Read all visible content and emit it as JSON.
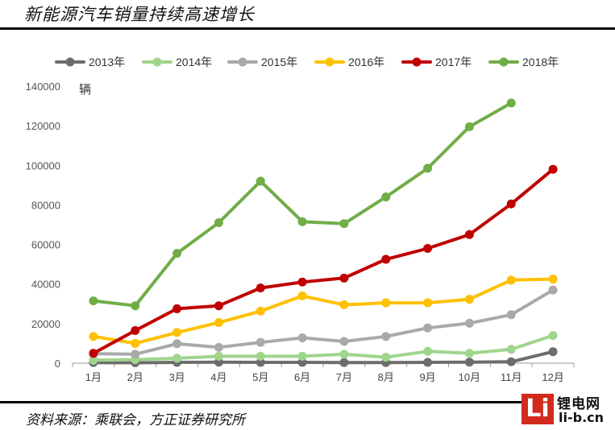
{
  "header": {
    "title": "新能源汽车销量持续高速增长"
  },
  "footer": {
    "source": "资料来源：乘联会，方正证券研究所"
  },
  "logo": {
    "text_cn": "锂电网",
    "url": "li-b.cn",
    "glyph": "Li",
    "color": "#d32a1e"
  },
  "chart_data": {
    "type": "line",
    "title": "新能源汽车销量持续高速增长",
    "ylabel": "辆",
    "xlabel": "",
    "ylim": [
      0,
      140000
    ],
    "yticks": [
      0,
      20000,
      40000,
      60000,
      80000,
      100000,
      120000,
      140000
    ],
    "ytick_labels": [
      "0",
      "20000",
      "40000",
      "60000",
      "80000",
      "100000",
      "120000",
      "140000"
    ],
    "categories": [
      "1月",
      "2月",
      "3月",
      "4月",
      "5月",
      "6月",
      "7月",
      "8月",
      "9月",
      "10月",
      "11月",
      "12月"
    ],
    "legend_position": "top",
    "grid": false,
    "series": [
      {
        "name": "2013年",
        "color": "#6d6d6d",
        "values": [
          300,
          200,
          400,
          500,
          400,
          400,
          300,
          300,
          400,
          500,
          700,
          5800
        ]
      },
      {
        "name": "2014年",
        "color": "#9fd58d",
        "values": [
          1500,
          1800,
          2500,
          3500,
          3500,
          3500,
          4500,
          3000,
          6000,
          5000,
          7000,
          14000
        ]
      },
      {
        "name": "2015年",
        "color": "#a9a9a9",
        "values": [
          4800,
          4500,
          9800,
          8000,
          10500,
          12800,
          11000,
          13500,
          17800,
          20200,
          24500,
          37000
        ]
      },
      {
        "name": "2016年",
        "color": "#ffc000",
        "values": [
          13500,
          10000,
          15500,
          20500,
          26300,
          34000,
          29500,
          30500,
          30500,
          32300,
          42000,
          42500
        ]
      },
      {
        "name": "2017年",
        "color": "#c00000",
        "values": [
          5000,
          16500,
          27500,
          29000,
          38000,
          41000,
          43000,
          52500,
          58000,
          65000,
          80500,
          98000
        ]
      },
      {
        "name": "2018年",
        "color": "#70ad47",
        "values": [
          31500,
          29000,
          55500,
          71000,
          92000,
          71500,
          70500,
          84000,
          98500,
          119500,
          131500,
          null
        ]
      }
    ]
  }
}
